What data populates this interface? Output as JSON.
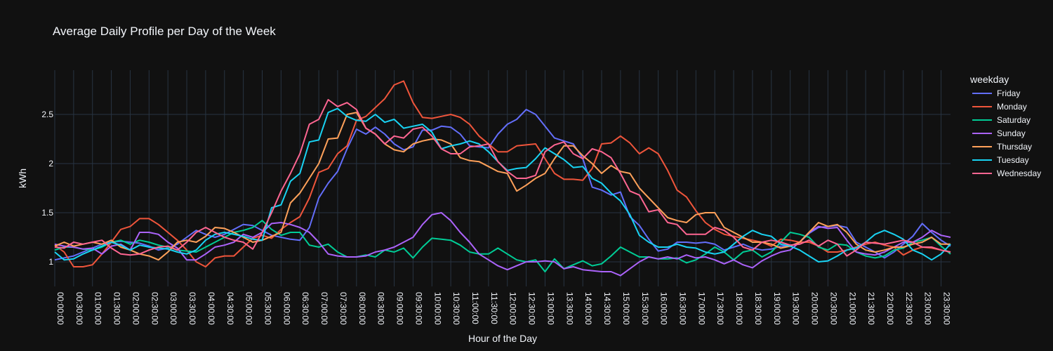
{
  "chart_data": {
    "type": "line",
    "title": "Average Daily Profile per Day of the Week",
    "xlabel": "Hour of the Day",
    "ylabel": "kWh",
    "legend_title": "weekday",
    "legend_position": "right",
    "grid": true,
    "ylim": [
      0.75,
      2.95
    ],
    "yticks": [
      1,
      1.5,
      2,
      2.5
    ],
    "ytick_labels": [
      "1",
      "1.5",
      "2",
      "2.5"
    ],
    "x_count": 96,
    "xtick_step": 2,
    "xtick_labels": [
      "00:00:00",
      "00:30:00",
      "01:00:00",
      "01:30:00",
      "02:00:00",
      "02:30:00",
      "03:00:00",
      "03:30:00",
      "04:00:00",
      "04:30:00",
      "05:00:00",
      "05:30:00",
      "06:00:00",
      "06:30:00",
      "07:00:00",
      "07:30:00",
      "08:00:00",
      "08:30:00",
      "09:00:00",
      "09:30:00",
      "10:00:00",
      "10:30:00",
      "11:00:00",
      "11:30:00",
      "12:00:00",
      "12:30:00",
      "13:00:00",
      "13:30:00",
      "14:00:00",
      "14:30:00",
      "15:00:00",
      "15:30:00",
      "16:00:00",
      "16:30:00",
      "17:00:00",
      "17:30:00",
      "18:00:00",
      "18:30:00",
      "19:00:00",
      "19:30:00",
      "20:00:00",
      "20:30:00",
      "21:00:00",
      "21:30:00",
      "22:00:00",
      "22:30:00",
      "23:00:00",
      "23:30:00"
    ],
    "series": [
      {
        "name": "Friday",
        "color": "#636efa",
        "values": [
          1.02,
          1.04,
          1.06,
          1.1,
          1.14,
          1.18,
          1.2,
          1.21,
          1.2,
          1.19,
          1.16,
          1.12,
          1.14,
          1.18,
          1.25,
          1.32,
          1.28,
          1.25,
          1.28,
          1.33,
          1.38,
          1.37,
          1.32,
          1.27,
          1.25,
          1.23,
          1.22,
          1.35,
          1.65,
          1.8,
          1.92,
          2.15,
          2.35,
          2.3,
          2.37,
          2.3,
          2.2,
          2.14,
          2.17,
          2.34,
          2.34,
          2.38,
          2.37,
          2.3,
          2.18,
          2.17,
          2.16,
          2.3,
          2.4,
          2.45,
          2.55,
          2.5,
          2.38,
          2.26,
          2.23,
          2.2,
          2.05,
          1.76,
          1.73,
          1.68,
          1.71,
          1.46,
          1.37,
          1.23,
          1.11,
          1.13,
          1.2,
          1.2,
          1.19,
          1.2,
          1.18,
          1.12,
          1.15,
          1.18,
          1.14,
          1.12,
          1.13,
          1.16,
          1.16,
          1.2,
          1.29,
          1.35,
          1.36,
          1.37,
          1.35,
          1.2,
          1.15,
          1.1,
          1.04,
          1.1,
          1.18,
          1.26,
          1.39,
          1.3,
          1.22,
          1.16
        ]
      },
      {
        "name": "Monday",
        "color": "#ef553b",
        "values": [
          1.17,
          1.1,
          0.95,
          0.95,
          0.97,
          1.08,
          1.2,
          1.33,
          1.36,
          1.44,
          1.44,
          1.38,
          1.3,
          1.22,
          1.12,
          1.0,
          0.95,
          1.04,
          1.06,
          1.06,
          1.15,
          1.24,
          1.27,
          1.24,
          1.33,
          1.4,
          1.46,
          1.65,
          1.91,
          1.95,
          2.1,
          2.18,
          2.44,
          2.48,
          2.57,
          2.66,
          2.8,
          2.84,
          2.62,
          2.47,
          2.46,
          2.48,
          2.5,
          2.47,
          2.4,
          2.28,
          2.2,
          2.12,
          2.12,
          2.18,
          2.19,
          2.2,
          2.05,
          1.9,
          1.84,
          1.84,
          1.83,
          1.95,
          2.2,
          2.21,
          2.28,
          2.21,
          2.1,
          2.16,
          2.1,
          1.93,
          1.73,
          1.66,
          1.52,
          1.4,
          1.33,
          1.28,
          1.26,
          1.24,
          1.22,
          1.2,
          1.16,
          1.23,
          1.22,
          1.2,
          1.2,
          1.16,
          1.1,
          1.1,
          1.12,
          1.15,
          1.18,
          1.2,
          1.17,
          1.15,
          1.07,
          1.12,
          1.15,
          1.14,
          1.12,
          1.1
        ]
      },
      {
        "name": "Saturday",
        "color": "#00cc96",
        "values": [
          1.12,
          1.15,
          1.15,
          1.13,
          1.12,
          1.15,
          1.2,
          1.22,
          1.18,
          1.22,
          1.2,
          1.17,
          1.15,
          1.12,
          1.11,
          1.1,
          1.15,
          1.2,
          1.25,
          1.3,
          1.32,
          1.35,
          1.42,
          1.33,
          1.27,
          1.3,
          1.3,
          1.17,
          1.15,
          1.18,
          1.1,
          1.05,
          1.05,
          1.07,
          1.05,
          1.12,
          1.1,
          1.14,
          1.04,
          1.15,
          1.24,
          1.23,
          1.22,
          1.17,
          1.1,
          1.08,
          1.08,
          1.14,
          1.08,
          1.02,
          1.0,
          1.02,
          0.9,
          1.03,
          0.93,
          0.97,
          1.01,
          0.96,
          0.98,
          1.06,
          1.15,
          1.1,
          1.05,
          1.05,
          1.03,
          1.03,
          1.04,
          0.99,
          1.02,
          1.08,
          1.15,
          1.1,
          1.02,
          1.1,
          1.12,
          1.05,
          1.1,
          1.2,
          1.3,
          1.28,
          1.25,
          1.15,
          1.12,
          1.18,
          1.17,
          1.1,
          1.06,
          1.04,
          1.06,
          1.12,
          1.14,
          1.2,
          1.22,
          1.25,
          1.16,
          1.08
        ]
      },
      {
        "name": "Sunday",
        "color": "#ab63fa",
        "values": [
          1.18,
          1.16,
          1.15,
          1.13,
          1.14,
          1.08,
          1.16,
          1.18,
          1.12,
          1.3,
          1.3,
          1.28,
          1.2,
          1.14,
          1.02,
          1.02,
          1.08,
          1.15,
          1.17,
          1.2,
          1.28,
          1.25,
          1.3,
          1.39,
          1.4,
          1.38,
          1.35,
          1.3,
          1.2,
          1.08,
          1.06,
          1.05,
          1.05,
          1.06,
          1.1,
          1.12,
          1.15,
          1.2,
          1.25,
          1.38,
          1.48,
          1.5,
          1.42,
          1.3,
          1.2,
          1.08,
          1.02,
          0.96,
          0.92,
          0.96,
          1.0,
          1.0,
          1.01,
          1.0,
          0.93,
          0.95,
          0.92,
          0.91,
          0.9,
          0.9,
          0.86,
          0.93,
          1.0,
          1.05,
          1.03,
          1.05,
          1.03,
          1.07,
          1.04,
          1.05,
          1.02,
          0.98,
          1.02,
          0.97,
          0.94,
          1.01,
          1.06,
          1.1,
          1.12,
          1.2,
          1.3,
          1.36,
          1.34,
          1.35,
          1.22,
          1.1,
          1.08,
          1.07,
          1.1,
          1.15,
          1.2,
          1.2,
          1.25,
          1.32,
          1.27,
          1.25
        ]
      },
      {
        "name": "Thursday",
        "color": "#ffa15a",
        "values": [
          1.16,
          1.2,
          1.16,
          1.18,
          1.2,
          1.18,
          1.22,
          1.15,
          1.12,
          1.08,
          1.06,
          1.02,
          1.1,
          1.2,
          1.22,
          1.2,
          1.26,
          1.35,
          1.34,
          1.3,
          1.25,
          1.2,
          1.22,
          1.26,
          1.3,
          1.6,
          1.7,
          1.85,
          2.0,
          2.25,
          2.26,
          2.5,
          2.52,
          2.36,
          2.3,
          2.2,
          2.14,
          2.12,
          2.2,
          2.23,
          2.25,
          2.24,
          2.2,
          2.06,
          2.03,
          2.02,
          1.97,
          1.92,
          1.9,
          1.72,
          1.78,
          1.85,
          1.9,
          2.05,
          2.18,
          2.18,
          2.08,
          2.0,
          1.9,
          1.98,
          1.92,
          1.9,
          1.75,
          1.65,
          1.55,
          1.45,
          1.42,
          1.4,
          1.48,
          1.5,
          1.5,
          1.35,
          1.3,
          1.25,
          1.2,
          1.2,
          1.18,
          1.14,
          1.16,
          1.2,
          1.3,
          1.4,
          1.36,
          1.38,
          1.3,
          1.18,
          1.12,
          1.1,
          1.12,
          1.15,
          1.15,
          1.18,
          1.2,
          1.25,
          1.18,
          1.18
        ]
      },
      {
        "name": "Tuesday",
        "color": "#19d3f3",
        "values": [
          1.1,
          1.02,
          1.03,
          1.08,
          1.12,
          1.16,
          1.2,
          1.17,
          1.12,
          1.17,
          1.15,
          1.14,
          1.13,
          1.1,
          1.08,
          1.12,
          1.22,
          1.28,
          1.3,
          1.28,
          1.26,
          1.23,
          1.22,
          1.55,
          1.58,
          1.82,
          1.9,
          2.22,
          2.24,
          2.52,
          2.56,
          2.48,
          2.44,
          2.43,
          2.5,
          2.42,
          2.45,
          2.36,
          2.38,
          2.4,
          2.32,
          2.15,
          2.18,
          2.2,
          2.23,
          2.2,
          2.12,
          2.02,
          1.93,
          1.95,
          1.96,
          2.05,
          2.16,
          2.1,
          2.04,
          1.96,
          1.97,
          1.85,
          1.8,
          1.7,
          1.62,
          1.48,
          1.27,
          1.2,
          1.15,
          1.15,
          1.18,
          1.15,
          1.14,
          1.1,
          1.08,
          1.1,
          1.18,
          1.26,
          1.32,
          1.28,
          1.26,
          1.18,
          1.16,
          1.12,
          1.06,
          1.0,
          1.01,
          1.06,
          1.12,
          1.14,
          1.2,
          1.28,
          1.32,
          1.28,
          1.23,
          1.12,
          1.08,
          1.02,
          1.08,
          1.18
        ]
      },
      {
        "name": "Wednesday",
        "color": "#ff6692",
        "values": [
          1.15,
          1.14,
          1.2,
          1.18,
          1.2,
          1.22,
          1.14,
          1.08,
          1.07,
          1.08,
          1.12,
          1.15,
          1.16,
          1.12,
          1.2,
          1.3,
          1.35,
          1.3,
          1.25,
          1.22,
          1.2,
          1.13,
          1.3,
          1.5,
          1.72,
          1.9,
          2.1,
          2.4,
          2.45,
          2.65,
          2.58,
          2.62,
          2.55,
          2.36,
          2.3,
          2.2,
          2.28,
          2.26,
          2.35,
          2.37,
          2.28,
          2.15,
          2.1,
          2.1,
          2.17,
          2.18,
          2.2,
          2.02,
          1.92,
          1.85,
          1.85,
          1.88,
          2.12,
          2.19,
          2.22,
          2.1,
          2.05,
          2.15,
          2.12,
          2.06,
          1.9,
          1.72,
          1.68,
          1.51,
          1.53,
          1.4,
          1.38,
          1.28,
          1.28,
          1.28,
          1.35,
          1.32,
          1.25,
          1.15,
          1.12,
          1.2,
          1.22,
          1.2,
          1.17,
          1.18,
          1.22,
          1.16,
          1.22,
          1.18,
          1.06,
          1.12,
          1.2,
          1.19,
          1.18,
          1.2,
          1.22,
          1.2,
          1.15,
          1.15,
          1.12,
          1.1
        ]
      }
    ]
  }
}
